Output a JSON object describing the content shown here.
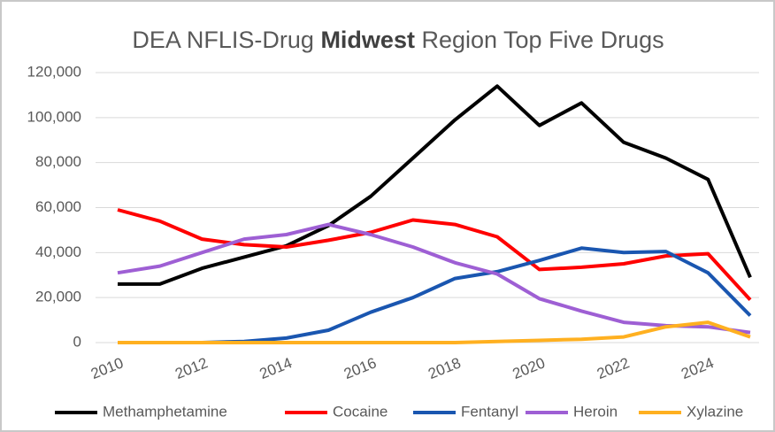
{
  "chart_data": {
    "type": "line",
    "title": "DEA NFLIS-Drug Midwest Region Top Five Drugs",
    "title_bold": "Midwest",
    "x": [
      2010,
      2011,
      2012,
      2013,
      2014,
      2015,
      2016,
      2017,
      2018,
      2019,
      2020,
      2021,
      2022,
      2023,
      2024,
      2025
    ],
    "xlim": [
      2010,
      2025
    ],
    "xticks": [
      2010,
      2012,
      2014,
      2016,
      2018,
      2020,
      2022,
      2024
    ],
    "ylim": [
      0,
      120000
    ],
    "yticks": [
      0,
      {
        "value": 20000,
        "label": "20,000"
      },
      {
        "value": 40000,
        "label": "40,000"
      },
      {
        "value": 60000,
        "label": "60,000"
      },
      {
        "value": 80000,
        "label": "80,000"
      },
      {
        "value": 100000,
        "label": "100,000"
      },
      {
        "value": 120000,
        "label": "120,000"
      }
    ],
    "grid": true,
    "legend": "bottom",
    "series": [
      {
        "name": "Methamphetamine",
        "color": "#000000",
        "values": [
          26000,
          26000,
          33000,
          38000,
          43000,
          52000,
          65000,
          82000,
          99000,
          114000,
          96500,
          106500,
          89000,
          82000,
          72500,
          29000
        ]
      },
      {
        "name": "Cocaine",
        "color": "#ff0000",
        "values": [
          59000,
          54000,
          46000,
          43500,
          42500,
          45500,
          49000,
          54500,
          52500,
          47000,
          32500,
          33500,
          35000,
          38500,
          39500,
          19000
        ]
      },
      {
        "name": "Fentanyl",
        "color": "#1a56b0",
        "values": [
          0,
          0,
          0,
          500,
          2000,
          5500,
          13500,
          20000,
          28500,
          31500,
          36500,
          42000,
          40000,
          40500,
          31000,
          12000
        ]
      },
      {
        "name": "Heroin",
        "color": "#9e5fd4",
        "values": [
          31000,
          34000,
          40000,
          46000,
          48000,
          52500,
          48000,
          42500,
          35500,
          30500,
          19500,
          14000,
          9000,
          7500,
          7000,
          4500
        ]
      },
      {
        "name": "Xylazine",
        "color": "#ffb020",
        "values": [
          0,
          0,
          0,
          0,
          0,
          0,
          0,
          0,
          0,
          500,
          1000,
          1500,
          2500,
          7000,
          9000,
          2500
        ]
      }
    ]
  }
}
